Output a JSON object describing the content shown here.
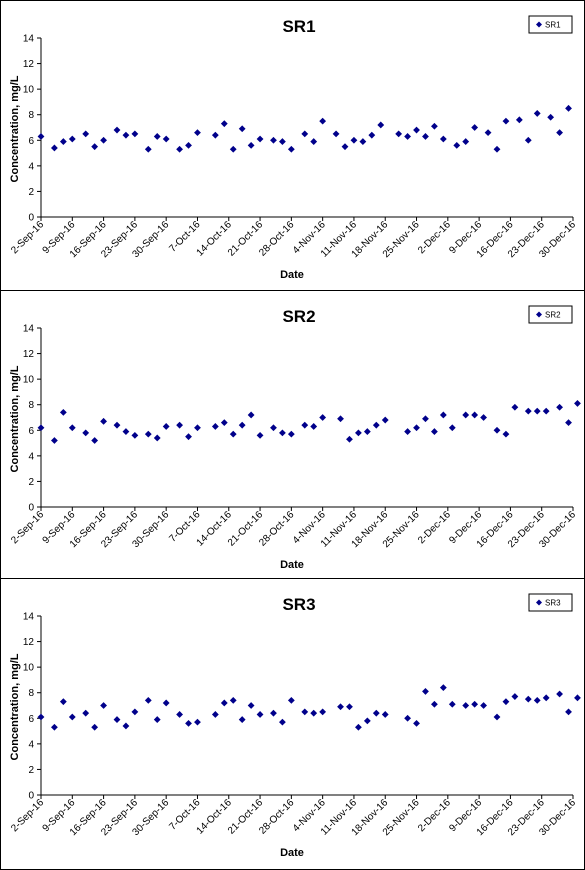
{
  "chart_data": [
    {
      "type": "scatter",
      "title": "SR1",
      "xlabel": "Date",
      "ylabel": "Concentration, mg/L",
      "ylim": [
        0,
        14
      ],
      "yticks": [
        0,
        2,
        4,
        6,
        8,
        10,
        12,
        14
      ],
      "xlim": [
        "2016-09-02",
        "2016-12-30"
      ],
      "xtick_labels": [
        "2-Sep-16",
        "9-Sep-16",
        "16-Sep-16",
        "23-Sep-16",
        "30-Sep-16",
        "7-Oct-16",
        "14-Oct-16",
        "21-Oct-16",
        "28-Oct-16",
        "4-Nov-16",
        "11-Nov-16",
        "18-Nov-16",
        "25-Nov-16",
        "2-Dec-16",
        "9-Dec-16",
        "16-Dec-16",
        "23-Dec-16",
        "30-Dec-16"
      ],
      "grid": false,
      "legend_position": "top-right",
      "marker": "diamond",
      "color": "#00008b",
      "series": [
        {
          "name": "SR1",
          "points": [
            [
              "2016-09-02",
              6.3
            ],
            [
              "2016-09-05",
              5.4
            ],
            [
              "2016-09-07",
              5.9
            ],
            [
              "2016-09-09",
              6.1
            ],
            [
              "2016-09-12",
              6.5
            ],
            [
              "2016-09-14",
              5.5
            ],
            [
              "2016-09-16",
              6.0
            ],
            [
              "2016-09-19",
              6.8
            ],
            [
              "2016-09-21",
              6.4
            ],
            [
              "2016-09-23",
              6.5
            ],
            [
              "2016-09-26",
              5.3
            ],
            [
              "2016-09-28",
              6.3
            ],
            [
              "2016-09-30",
              6.1
            ],
            [
              "2016-10-03",
              5.3
            ],
            [
              "2016-10-05",
              5.6
            ],
            [
              "2016-10-07",
              6.6
            ],
            [
              "2016-10-11",
              6.4
            ],
            [
              "2016-10-13",
              7.3
            ],
            [
              "2016-10-15",
              5.3
            ],
            [
              "2016-10-17",
              6.9
            ],
            [
              "2016-10-19",
              5.6
            ],
            [
              "2016-10-21",
              6.1
            ],
            [
              "2016-10-24",
              6.0
            ],
            [
              "2016-10-26",
              5.9
            ],
            [
              "2016-10-28",
              5.3
            ],
            [
              "2016-10-31",
              6.5
            ],
            [
              "2016-11-02",
              5.9
            ],
            [
              "2016-11-04",
              7.5
            ],
            [
              "2016-11-07",
              6.5
            ],
            [
              "2016-11-09",
              5.5
            ],
            [
              "2016-11-11",
              6.0
            ],
            [
              "2016-11-13",
              5.9
            ],
            [
              "2016-11-15",
              6.4
            ],
            [
              "2016-11-17",
              7.2
            ],
            [
              "2016-11-21",
              6.5
            ],
            [
              "2016-11-23",
              6.3
            ],
            [
              "2016-11-25",
              6.8
            ],
            [
              "2016-11-27",
              6.3
            ],
            [
              "2016-11-29",
              7.1
            ],
            [
              "2016-12-01",
              6.1
            ],
            [
              "2016-12-04",
              5.6
            ],
            [
              "2016-12-06",
              5.9
            ],
            [
              "2016-12-08",
              7.0
            ],
            [
              "2016-12-11",
              6.6
            ],
            [
              "2016-12-13",
              5.3
            ],
            [
              "2016-12-15",
              7.5
            ],
            [
              "2016-12-18",
              7.6
            ],
            [
              "2016-12-20",
              6.0
            ],
            [
              "2016-12-22",
              8.1
            ],
            [
              "2016-12-25",
              7.8
            ],
            [
              "2016-12-27",
              6.6
            ],
            [
              "2016-12-29",
              8.5
            ]
          ]
        }
      ]
    },
    {
      "type": "scatter",
      "title": "SR2",
      "xlabel": "Date",
      "ylabel": "Concentration, mg/L",
      "ylim": [
        0,
        14
      ],
      "yticks": [
        0,
        2,
        4,
        6,
        8,
        10,
        12,
        14
      ],
      "xlim": [
        "2016-09-02",
        "2016-12-30"
      ],
      "xtick_labels": [
        "2-Sep-16",
        "9-Sep-16",
        "16-Sep-16",
        "23-Sep-16",
        "30-Sep-16",
        "7-Oct-16",
        "14-Oct-16",
        "21-Oct-16",
        "28-Oct-16",
        "4-Nov-16",
        "11-Nov-16",
        "18-Nov-16",
        "25-Nov-16",
        "2-Dec-16",
        "9-Dec-16",
        "16-Dec-16",
        "23-Dec-16",
        "30-Dec-16"
      ],
      "grid": false,
      "legend_position": "top-right",
      "marker": "diamond",
      "color": "#00008b",
      "series": [
        {
          "name": "SR2",
          "points": [
            [
              "2016-09-02",
              6.2
            ],
            [
              "2016-09-05",
              5.2
            ],
            [
              "2016-09-07",
              7.4
            ],
            [
              "2016-09-09",
              6.2
            ],
            [
              "2016-09-12",
              5.8
            ],
            [
              "2016-09-14",
              5.2
            ],
            [
              "2016-09-16",
              6.7
            ],
            [
              "2016-09-19",
              6.4
            ],
            [
              "2016-09-21",
              5.9
            ],
            [
              "2016-09-23",
              5.6
            ],
            [
              "2016-09-26",
              5.7
            ],
            [
              "2016-09-28",
              5.4
            ],
            [
              "2016-09-30",
              6.3
            ],
            [
              "2016-10-03",
              6.4
            ],
            [
              "2016-10-05",
              5.5
            ],
            [
              "2016-10-07",
              6.2
            ],
            [
              "2016-10-11",
              6.3
            ],
            [
              "2016-10-13",
              6.6
            ],
            [
              "2016-10-15",
              5.7
            ],
            [
              "2016-10-17",
              6.4
            ],
            [
              "2016-10-19",
              7.2
            ],
            [
              "2016-10-21",
              5.6
            ],
            [
              "2016-10-24",
              6.2
            ],
            [
              "2016-10-26",
              5.8
            ],
            [
              "2016-10-28",
              5.7
            ],
            [
              "2016-10-31",
              6.4
            ],
            [
              "2016-11-02",
              6.3
            ],
            [
              "2016-11-04",
              7.0
            ],
            [
              "2016-11-08",
              6.9
            ],
            [
              "2016-11-10",
              5.3
            ],
            [
              "2016-11-12",
              5.8
            ],
            [
              "2016-11-14",
              5.9
            ],
            [
              "2016-11-16",
              6.4
            ],
            [
              "2016-11-18",
              6.8
            ],
            [
              "2016-11-23",
              5.9
            ],
            [
              "2016-11-25",
              6.2
            ],
            [
              "2016-11-27",
              6.9
            ],
            [
              "2016-11-29",
              5.9
            ],
            [
              "2016-12-01",
              7.2
            ],
            [
              "2016-12-03",
              6.2
            ],
            [
              "2016-12-06",
              7.2
            ],
            [
              "2016-12-08",
              7.2
            ],
            [
              "2016-12-10",
              7.0
            ],
            [
              "2016-12-13",
              6.0
            ],
            [
              "2016-12-15",
              5.7
            ],
            [
              "2016-12-17",
              7.8
            ],
            [
              "2016-12-20",
              7.5
            ],
            [
              "2016-12-22",
              7.5
            ],
            [
              "2016-12-24",
              7.5
            ],
            [
              "2016-12-27",
              7.8
            ],
            [
              "2016-12-29",
              6.6
            ],
            [
              "2016-12-31",
              8.1
            ]
          ]
        }
      ]
    },
    {
      "type": "scatter",
      "title": "SR3",
      "xlabel": "Date",
      "ylabel": "Concentration, mg/L",
      "ylim": [
        0,
        14
      ],
      "yticks": [
        0,
        2,
        4,
        6,
        8,
        10,
        12,
        14
      ],
      "xlim": [
        "2016-09-02",
        "2016-12-30"
      ],
      "xtick_labels": [
        "2-Sep-16",
        "9-Sep-16",
        "16-Sep-16",
        "23-Sep-16",
        "30-Sep-16",
        "7-Oct-16",
        "14-Oct-16",
        "21-Oct-16",
        "28-Oct-16",
        "4-Nov-16",
        "11-Nov-16",
        "18-Nov-16",
        "25-Nov-16",
        "2-Dec-16",
        "9-Dec-16",
        "16-Dec-16",
        "23-Dec-16",
        "30-Dec-16"
      ],
      "grid": false,
      "legend_position": "top-right",
      "marker": "diamond",
      "color": "#00008b",
      "series": [
        {
          "name": "SR3",
          "points": [
            [
              "2016-09-02",
              6.1
            ],
            [
              "2016-09-05",
              5.3
            ],
            [
              "2016-09-07",
              7.3
            ],
            [
              "2016-09-09",
              6.1
            ],
            [
              "2016-09-12",
              6.4
            ],
            [
              "2016-09-14",
              5.3
            ],
            [
              "2016-09-16",
              7.0
            ],
            [
              "2016-09-19",
              5.9
            ],
            [
              "2016-09-21",
              5.4
            ],
            [
              "2016-09-23",
              6.5
            ],
            [
              "2016-09-26",
              7.4
            ],
            [
              "2016-09-28",
              5.9
            ],
            [
              "2016-09-30",
              7.2
            ],
            [
              "2016-10-03",
              6.3
            ],
            [
              "2016-10-05",
              5.6
            ],
            [
              "2016-10-07",
              5.7
            ],
            [
              "2016-10-11",
              6.3
            ],
            [
              "2016-10-13",
              7.2
            ],
            [
              "2016-10-15",
              7.4
            ],
            [
              "2016-10-17",
              5.9
            ],
            [
              "2016-10-19",
              7.0
            ],
            [
              "2016-10-21",
              6.3
            ],
            [
              "2016-10-24",
              6.4
            ],
            [
              "2016-10-26",
              5.7
            ],
            [
              "2016-10-28",
              7.4
            ],
            [
              "2016-10-31",
              6.5
            ],
            [
              "2016-11-02",
              6.4
            ],
            [
              "2016-11-04",
              6.5
            ],
            [
              "2016-11-08",
              6.9
            ],
            [
              "2016-11-10",
              6.9
            ],
            [
              "2016-11-12",
              5.3
            ],
            [
              "2016-11-14",
              5.8
            ],
            [
              "2016-11-16",
              6.4
            ],
            [
              "2016-11-18",
              6.3
            ],
            [
              "2016-11-23",
              6.0
            ],
            [
              "2016-11-25",
              5.6
            ],
            [
              "2016-11-27",
              8.1
            ],
            [
              "2016-11-29",
              7.1
            ],
            [
              "2016-12-01",
              8.4
            ],
            [
              "2016-12-03",
              7.1
            ],
            [
              "2016-12-06",
              7.0
            ],
            [
              "2016-12-08",
              7.1
            ],
            [
              "2016-12-10",
              7.0
            ],
            [
              "2016-12-13",
              6.1
            ],
            [
              "2016-12-15",
              7.3
            ],
            [
              "2016-12-17",
              7.7
            ],
            [
              "2016-12-20",
              7.5
            ],
            [
              "2016-12-22",
              7.4
            ],
            [
              "2016-12-24",
              7.6
            ],
            [
              "2016-12-27",
              7.9
            ],
            [
              "2016-12-29",
              6.5
            ],
            [
              "2016-12-31",
              7.6
            ]
          ]
        }
      ]
    }
  ]
}
